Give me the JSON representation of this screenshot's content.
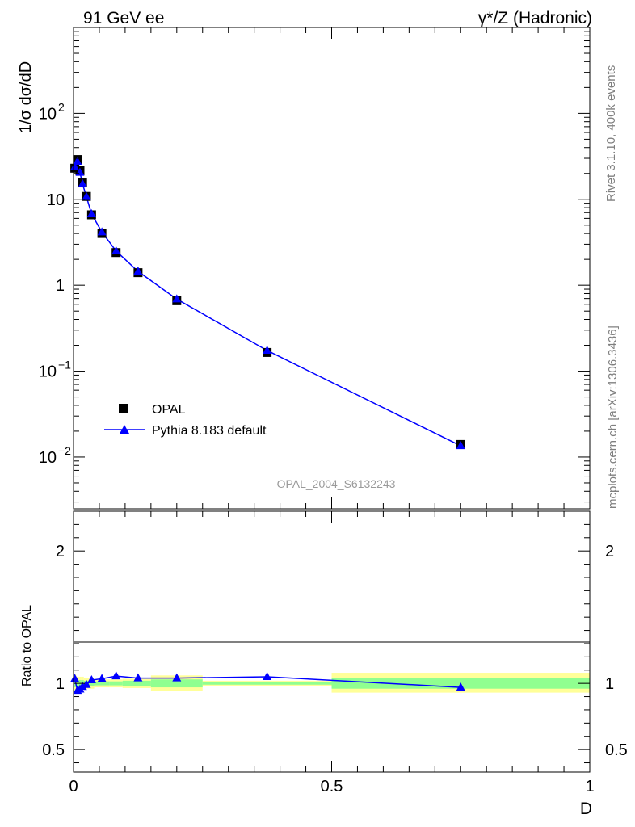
{
  "header": {
    "left_title": "91 GeV ee",
    "right_title": "γ*/Z (Hadronic)"
  },
  "side_labels": {
    "rivet": "Rivet 3.1.10,  400k events",
    "mcplots": "mcplots.cern.ch [arXiv:1306.3436]"
  },
  "watermark": "OPAL_2004_S6132243",
  "colors": {
    "data_marker": "#000000",
    "mc_line": "#0000ff",
    "band_inner": "#90ff90",
    "band_outer": "#ffff99"
  },
  "chart_data": [
    {
      "type": "line",
      "panel": "main",
      "ylabel": "1/σ dσ/dD",
      "yscale": "log",
      "ylim": [
        0.0025,
        1000
      ],
      "xlim": [
        0,
        1
      ],
      "ytick_labels": [
        {
          "value": 0.01,
          "base": "10",
          "exp": "−2"
        },
        {
          "value": 0.1,
          "base": "10",
          "exp": "−1"
        },
        {
          "value": 1,
          "base": "1",
          "exp": ""
        },
        {
          "value": 10,
          "base": "10",
          "exp": ""
        },
        {
          "value": 100,
          "base": "10",
          "exp": "2"
        }
      ],
      "legend": {
        "position": "bottom-left"
      },
      "series": [
        {
          "name": "OPAL",
          "marker": "square",
          "points": [
            {
              "x": 0.0025,
              "y": 23.0
            },
            {
              "x": 0.0075,
              "y": 29.0
            },
            {
              "x": 0.0125,
              "y": 21.5
            },
            {
              "x": 0.0175,
              "y": 15.5
            },
            {
              "x": 0.025,
              "y": 10.8
            },
            {
              "x": 0.035,
              "y": 6.6
            },
            {
              "x": 0.055,
              "y": 4.0
            },
            {
              "x": 0.0825,
              "y": 2.4
            },
            {
              "x": 0.125,
              "y": 1.4
            },
            {
              "x": 0.2,
              "y": 0.66
            },
            {
              "x": 0.375,
              "y": 0.165
            },
            {
              "x": 0.75,
              "y": 0.014
            }
          ]
        },
        {
          "name": "Pythia 8.183 default",
          "marker": "triangle",
          "points": [
            {
              "x": 0.0025,
              "y": 23.8
            },
            {
              "x": 0.0075,
              "y": 27.5
            },
            {
              "x": 0.0125,
              "y": 20.5
            },
            {
              "x": 0.0175,
              "y": 15.1
            },
            {
              "x": 0.025,
              "y": 10.7
            },
            {
              "x": 0.035,
              "y": 6.75
            },
            {
              "x": 0.055,
              "y": 4.15
            },
            {
              "x": 0.0825,
              "y": 2.5
            },
            {
              "x": 0.125,
              "y": 1.45
            },
            {
              "x": 0.2,
              "y": 0.69
            },
            {
              "x": 0.375,
              "y": 0.174
            },
            {
              "x": 0.75,
              "y": 0.0135
            }
          ]
        }
      ]
    },
    {
      "type": "line",
      "panel": "ratio",
      "ylabel": "Ratio to OPAL",
      "xlabel": "D",
      "ylim": [
        0.33,
        2.3
      ],
      "xlim": [
        0,
        1
      ],
      "ytick_labels": [
        "0.5",
        "1",
        "2"
      ],
      "xtick_labels": [
        "0",
        "0.5",
        "1"
      ],
      "bands": [
        {
          "x0": 0.0,
          "x1": 0.005,
          "inner": [
            0.97,
            1.03
          ],
          "outer": [
            0.93,
            1.07
          ]
        },
        {
          "x0": 0.005,
          "x1": 0.01,
          "inner": [
            0.975,
            1.025
          ],
          "outer": [
            0.95,
            1.05
          ]
        },
        {
          "x0": 0.01,
          "x1": 0.015,
          "inner": [
            0.975,
            1.025
          ],
          "outer": [
            0.95,
            1.05
          ]
        },
        {
          "x0": 0.015,
          "x1": 0.02,
          "inner": [
            0.975,
            1.025
          ],
          "outer": [
            0.95,
            1.05
          ]
        },
        {
          "x0": 0.02,
          "x1": 0.03,
          "inner": [
            0.98,
            1.02
          ],
          "outer": [
            0.96,
            1.04
          ]
        },
        {
          "x0": 0.03,
          "x1": 0.04,
          "inner": [
            0.98,
            1.02
          ],
          "outer": [
            0.96,
            1.04
          ]
        },
        {
          "x0": 0.04,
          "x1": 0.07,
          "inner": [
            0.985,
            1.015
          ],
          "outer": [
            0.97,
            1.03
          ]
        },
        {
          "x0": 0.07,
          "x1": 0.095,
          "inner": [
            0.985,
            1.015
          ],
          "outer": [
            0.97,
            1.03
          ]
        },
        {
          "x0": 0.095,
          "x1": 0.15,
          "inner": [
            0.98,
            1.02
          ],
          "outer": [
            0.965,
            1.035
          ]
        },
        {
          "x0": 0.15,
          "x1": 0.25,
          "inner": [
            0.97,
            1.03
          ],
          "outer": [
            0.94,
            1.06
          ]
        },
        {
          "x0": 0.25,
          "x1": 0.5,
          "inner": [
            0.99,
            1.01
          ],
          "outer": [
            0.98,
            1.02
          ]
        },
        {
          "x0": 0.5,
          "x1": 1.0,
          "inner": [
            0.96,
            1.04
          ],
          "outer": [
            0.93,
            1.08
          ]
        }
      ],
      "series": [
        {
          "name": "Pythia 8.183 default",
          "points": [
            {
              "x": 0.0025,
              "y": 1.035
            },
            {
              "x": 0.0075,
              "y": 0.945
            },
            {
              "x": 0.0125,
              "y": 0.955
            },
            {
              "x": 0.0175,
              "y": 0.975
            },
            {
              "x": 0.025,
              "y": 0.99
            },
            {
              "x": 0.035,
              "y": 1.025
            },
            {
              "x": 0.055,
              "y": 1.035
            },
            {
              "x": 0.0825,
              "y": 1.055
            },
            {
              "x": 0.125,
              "y": 1.04
            },
            {
              "x": 0.2,
              "y": 1.04
            },
            {
              "x": 0.375,
              "y": 1.05
            },
            {
              "x": 0.75,
              "y": 0.97
            }
          ]
        }
      ]
    }
  ]
}
